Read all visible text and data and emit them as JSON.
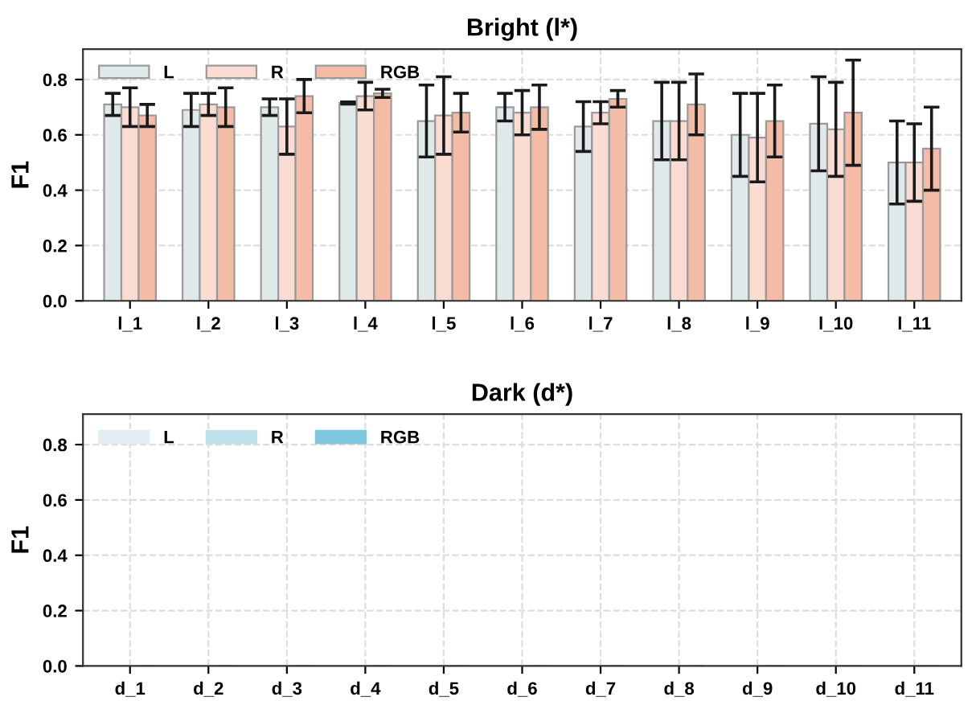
{
  "chart_data": [
    {
      "type": "bar",
      "title": "Bright (l*)",
      "ylabel": "F1",
      "categories": [
        "l_1",
        "l_2",
        "l_3",
        "l_4",
        "l_5",
        "l_6",
        "l_7",
        "l_8",
        "l_9",
        "l_10",
        "l_11"
      ],
      "series": [
        {
          "name": "L",
          "color": "#dfe9ea",
          "values": [
            0.71,
            0.69,
            0.7,
            0.715,
            0.65,
            0.7,
            0.63,
            0.65,
            0.6,
            0.64,
            0.5
          ],
          "errors": [
            0.04,
            0.06,
            0.03,
            0.004,
            0.13,
            0.05,
            0.09,
            0.14,
            0.15,
            0.17,
            0.15
          ]
        },
        {
          "name": "R",
          "color": "#fbdcd2",
          "values": [
            0.7,
            0.71,
            0.63,
            0.74,
            0.67,
            0.68,
            0.68,
            0.65,
            0.59,
            0.62,
            0.5
          ],
          "errors": [
            0.07,
            0.04,
            0.1,
            0.05,
            0.14,
            0.08,
            0.04,
            0.14,
            0.16,
            0.17,
            0.14
          ]
        },
        {
          "name": "RGB",
          "color": "#f4bca7",
          "values": [
            0.67,
            0.7,
            0.74,
            0.75,
            0.68,
            0.7,
            0.73,
            0.71,
            0.65,
            0.68,
            0.55
          ],
          "errors": [
            0.04,
            0.07,
            0.06,
            0.015,
            0.07,
            0.08,
            0.03,
            0.11,
            0.13,
            0.19,
            0.15
          ]
        }
      ],
      "ylim": [
        0,
        0.91
      ],
      "yticks": [
        {
          "value": 0,
          "label": "0.0"
        },
        {
          "value": 0.2,
          "label": "0.2"
        },
        {
          "value": 0.4,
          "label": "0.4"
        },
        {
          "value": 0.6,
          "label": "0.6"
        },
        {
          "value": 0.8,
          "label": "0.8"
        }
      ],
      "grid": true,
      "legend": "top left"
    },
    {
      "type": "bar",
      "title": "Dark (d*)",
      "ylabel": "F1",
      "categories": [
        "d_1",
        "d_2",
        "d_3",
        "d_4",
        "d_5",
        "d_6",
        "d_7",
        "d_8",
        "d_9",
        "d_10",
        "d_11"
      ],
      "series": [
        {
          "name": "L",
          "color": "#e2eef3",
          "values": [
            0,
            0,
            0,
            0,
            0,
            0,
            0,
            0,
            0,
            0,
            0
          ]
        },
        {
          "name": "R",
          "color": "#bfe1ec",
          "values": [
            0,
            0,
            0,
            0,
            0,
            0,
            0,
            0,
            0,
            0,
            0
          ]
        },
        {
          "name": "RGB",
          "color": "#7ec8df",
          "values": [
            0,
            0,
            0,
            0,
            0,
            0,
            0,
            0,
            0,
            0,
            0
          ]
        }
      ],
      "ylim": [
        0,
        0.91
      ],
      "yticks": [
        {
          "value": 0,
          "label": "0.0"
        },
        {
          "value": 0.2,
          "label": "0.2"
        },
        {
          "value": 0.4,
          "label": "0.4"
        },
        {
          "value": 0.6,
          "label": "0.6"
        },
        {
          "value": 0.8,
          "label": "0.8"
        }
      ],
      "grid": true,
      "legend": "top left"
    }
  ]
}
